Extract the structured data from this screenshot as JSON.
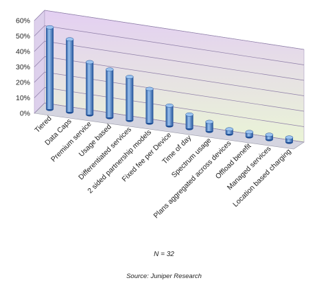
{
  "chart_data": {
    "type": "bar",
    "title": "",
    "xlabel": "",
    "ylabel": "",
    "categories": [
      "Tiered",
      "Data Caps",
      "Premium service",
      "Usage based",
      "Differentiated services",
      "2 sided partnership models",
      "Fixed fee per Device",
      "Time of day",
      "Spectrum usage",
      "Plans aggregated across devices",
      "Offload benefit",
      "Managed services",
      "Location based charging"
    ],
    "values": [
      53,
      47,
      34,
      31,
      28,
      22,
      13,
      9,
      6,
      3,
      3,
      3,
      3
    ],
    "ylim": [
      0,
      60
    ],
    "yticks": [
      0,
      10,
      20,
      30,
      40,
      50,
      60
    ],
    "ytick_labels": [
      "0%",
      "10%",
      "20%",
      "30%",
      "40%",
      "50%",
      "60%"
    ],
    "grid": true,
    "legend": "none",
    "colors": {
      "bar": "#4a7ec4",
      "bar_light": "#9cc4f0",
      "bar_dark": "#1f4f96",
      "back_wall_top": "#e3cff2",
      "back_wall_bottom": "#eaf4d6",
      "side_wall": "#ddd0ec",
      "floor": "#d5d5e0"
    }
  },
  "notes": {
    "n": "N = 32",
    "source": "Source: Juniper Research"
  }
}
